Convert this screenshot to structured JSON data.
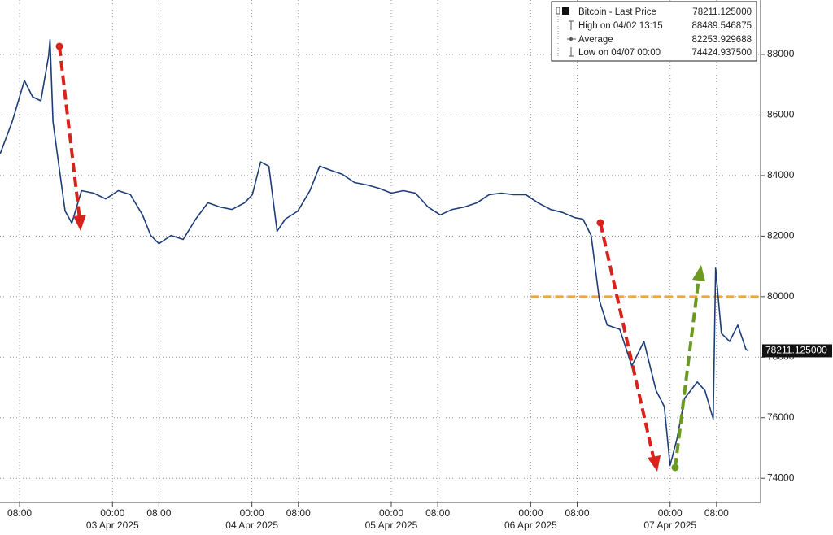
{
  "chart_data": {
    "type": "line",
    "series": [
      {
        "name": "Bitcoin",
        "color": "#1d3d78",
        "x": [
          "2025-04-02 04:40",
          "2025-04-02 06:45",
          "2025-04-02 08:50",
          "2025-04-02 10:15",
          "2025-04-02 11:40",
          "2025-04-02 13:00",
          "2025-04-02 13:15",
          "2025-04-02 13:45",
          "2025-04-02 14:30",
          "2025-04-02 15:50",
          "2025-04-02 17:00",
          "2025-04-02 18:40",
          "2025-04-02 20:45",
          "2025-04-02 22:50",
          "2025-04-03 01:00",
          "2025-04-03 03:05",
          "2025-04-03 05:10",
          "2025-04-03 06:35",
          "2025-04-03 08:00",
          "2025-04-03 10:05",
          "2025-04-03 12:10",
          "2025-04-03 14:20",
          "2025-04-03 16:25",
          "2025-04-03 18:30",
          "2025-04-03 20:35",
          "2025-04-03 22:45",
          "2025-04-04 00:05",
          "2025-04-04 01:30",
          "2025-04-04 02:55",
          "2025-04-04 04:20",
          "2025-04-04 05:45",
          "2025-04-04 07:55",
          "2025-04-04 10:00",
          "2025-04-04 11:40",
          "2025-04-04 13:30",
          "2025-04-04 15:35",
          "2025-04-04 17:40",
          "2025-04-04 19:50",
          "2025-04-04 21:55",
          "2025-04-05 00:00",
          "2025-04-05 02:05",
          "2025-04-05 04:10",
          "2025-04-05 06:20",
          "2025-04-05 08:25",
          "2025-04-05 10:30",
          "2025-04-05 12:35",
          "2025-04-05 14:45",
          "2025-04-05 16:50",
          "2025-04-05 18:55",
          "2025-04-05 21:05",
          "2025-04-05 23:10",
          "2025-04-06 01:15",
          "2025-04-06 03:25",
          "2025-04-06 05:30",
          "2025-04-06 07:35",
          "2025-04-06 09:00",
          "2025-04-06 10:25",
          "2025-04-06 11:50",
          "2025-04-06 13:10",
          "2025-04-06 15:20",
          "2025-04-06 17:25",
          "2025-04-06 19:30",
          "2025-04-06 21:35",
          "2025-04-06 23:00",
          "2025-04-07 00:00",
          "2025-04-07 01:10",
          "2025-04-07 02:30",
          "2025-04-07 04:40",
          "2025-04-07 06:00",
          "2025-04-07 07:25",
          "2025-04-07 07:50",
          "2025-04-07 08:50",
          "2025-04-07 10:15",
          "2025-04-07 11:40",
          "2025-04-07 13:05",
          "2025-04-07 13:30"
        ],
        "values": [
          84720,
          85790,
          87140,
          86600,
          86470,
          87950,
          88490,
          85790,
          84720,
          82830,
          82430,
          83500,
          83420,
          83230,
          83500,
          83370,
          82700,
          82020,
          81750,
          82020,
          81890,
          82560,
          83100,
          82960,
          82880,
          83100,
          83370,
          84450,
          84310,
          82160,
          82560,
          82830,
          83500,
          84310,
          84180,
          84040,
          83770,
          83690,
          83580,
          83420,
          83500,
          83420,
          82960,
          82700,
          82880,
          82960,
          83100,
          83370,
          83420,
          83370,
          83370,
          83100,
          82880,
          82780,
          82610,
          82560,
          82020,
          79870,
          79060,
          78920,
          77710,
          78520,
          76900,
          76370,
          74425,
          75290,
          76640,
          77180,
          76900,
          75960,
          80940,
          78790,
          78520,
          79060,
          78250,
          78211.125
        ]
      }
    ],
    "xlim": [
      "2025-04-02 04:38",
      "2025-04-07 15:35"
    ],
    "ylim": [
      73200,
      89800
    ],
    "yticks": [
      74000,
      76000,
      78000,
      80000,
      82000,
      84000,
      86000,
      88000
    ],
    "xticks": [
      {
        "value": "2025-04-02 08:00",
        "label": "08:00"
      },
      {
        "value": "2025-04-03 00:00",
        "label": "00:00"
      },
      {
        "value": "2025-04-03 08:00",
        "label": "08:00"
      },
      {
        "value": "2025-04-04 00:00",
        "label": "00:00"
      },
      {
        "value": "2025-04-04 08:00",
        "label": "08:00"
      },
      {
        "value": "2025-04-05 00:00",
        "label": "00:00"
      },
      {
        "value": "2025-04-05 08:00",
        "label": "08:00"
      },
      {
        "value": "2025-04-06 00:00",
        "label": "00:00"
      },
      {
        "value": "2025-04-06 08:00",
        "label": "08:00"
      },
      {
        "value": "2025-04-07 00:00",
        "label": "00:00"
      },
      {
        "value": "2025-04-07 08:00",
        "label": "08:00"
      }
    ],
    "date_labels": [
      {
        "value": "2025-04-03 00:00",
        "label": "03 Apr 2025"
      },
      {
        "value": "2025-04-04 00:00",
        "label": "04 Apr 2025"
      },
      {
        "value": "2025-04-05 00:00",
        "label": "05 Apr 2025"
      },
      {
        "value": "2025-04-06 00:00",
        "label": "06 Apr 2025"
      },
      {
        "value": "2025-04-07 00:00",
        "label": "07 Apr 2025"
      }
    ],
    "grid": true,
    "hline": {
      "value": 80000,
      "from": "2025-04-06 00:00",
      "color": "#f0a830"
    },
    "legend": [
      {
        "label": "Bitcoin - Last Price",
        "value": "78211.125000"
      },
      {
        "label": "High on 04/02 13:15",
        "value": "88489.546875"
      },
      {
        "label": "Average",
        "value": "82253.929688"
      },
      {
        "label": "Low on 04/07 00:00",
        "value": "74424.937500"
      }
    ]
  }
}
